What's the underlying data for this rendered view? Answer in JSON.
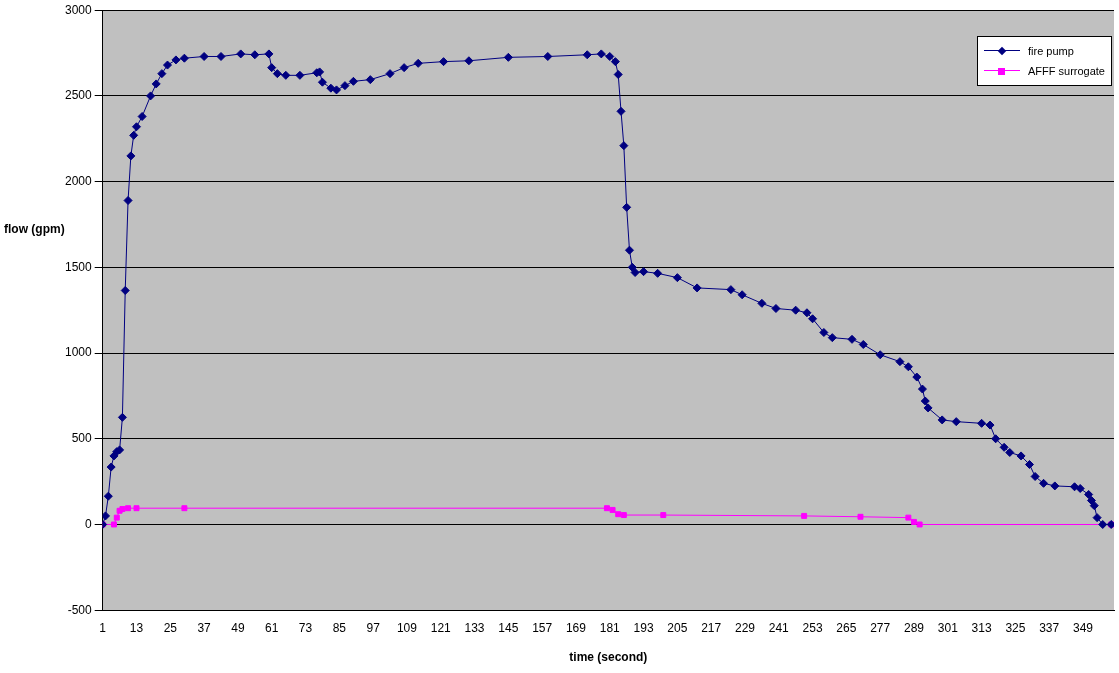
{
  "chart_data": {
    "type": "line",
    "xlabel": "time (second)",
    "ylabel": "flow (gpm)",
    "xlim": [
      1,
      360
    ],
    "xticks": [
      1,
      13,
      25,
      37,
      49,
      61,
      73,
      85,
      97,
      109,
      121,
      133,
      145,
      157,
      169,
      181,
      193,
      205,
      217,
      229,
      241,
      253,
      265,
      277,
      289,
      301,
      313,
      325,
      337,
      349
    ],
    "ylim": [
      -500,
      3000
    ],
    "yticks": [
      -500,
      0,
      500,
      1000,
      1500,
      2000,
      2500,
      3000
    ],
    "grid": "y",
    "legend": "top right",
    "series": [
      {
        "name": "fire pump",
        "color": "#000080",
        "marker": "diamond",
        "x": [
          1,
          2,
          3,
          4,
          5,
          6,
          7,
          8,
          9,
          10,
          11,
          12,
          13,
          15,
          18,
          20,
          22,
          24,
          27,
          30,
          37,
          43,
          50,
          55,
          60,
          61,
          63,
          66,
          71,
          77,
          78,
          79,
          82,
          84,
          87,
          90,
          96,
          103,
          108,
          113,
          122,
          131,
          145,
          159,
          173,
          178,
          181,
          183,
          184,
          185,
          186,
          187,
          188,
          189,
          190,
          193,
          198,
          205,
          212,
          224,
          228,
          235,
          240,
          247,
          251,
          253,
          257,
          260,
          267,
          271,
          277,
          284,
          287,
          290,
          292,
          293,
          294,
          299,
          304,
          313,
          316,
          318,
          321,
          323,
          327,
          330,
          332,
          335,
          339,
          346,
          348,
          351,
          352,
          353,
          354,
          356,
          359
        ],
        "values": [
          0,
          50,
          165,
          335,
          400,
          425,
          435,
          625,
          1365,
          1890,
          2150,
          2270,
          2320,
          2380,
          2500,
          2570,
          2630,
          2680,
          2710,
          2720,
          2730,
          2730,
          2745,
          2740,
          2745,
          2665,
          2630,
          2620,
          2620,
          2635,
          2640,
          2580,
          2545,
          2535,
          2560,
          2585,
          2595,
          2630,
          2665,
          2690,
          2700,
          2705,
          2725,
          2730,
          2740,
          2745,
          2730,
          2700,
          2625,
          2410,
          2210,
          1850,
          1600,
          1500,
          1470,
          1475,
          1465,
          1440,
          1380,
          1370,
          1340,
          1290,
          1260,
          1250,
          1235,
          1200,
          1120,
          1090,
          1080,
          1050,
          990,
          950,
          920,
          860,
          790,
          720,
          680,
          610,
          600,
          590,
          580,
          500,
          450,
          420,
          400,
          350,
          280,
          240,
          225,
          220,
          210,
          175,
          140,
          110,
          40,
          0,
          0
        ]
      },
      {
        "name": "AFFF surrogate",
        "color": "#ff00ff",
        "marker": "square",
        "x": [
          1,
          5,
          6,
          7,
          8,
          10,
          13,
          30,
          180,
          182,
          184,
          186,
          200,
          250,
          270,
          287,
          289,
          291,
          359
        ],
        "values": [
          0,
          0,
          40,
          80,
          90,
          95,
          95,
          95,
          95,
          85,
          60,
          55,
          55,
          50,
          45,
          40,
          15,
          0,
          0
        ]
      }
    ]
  }
}
